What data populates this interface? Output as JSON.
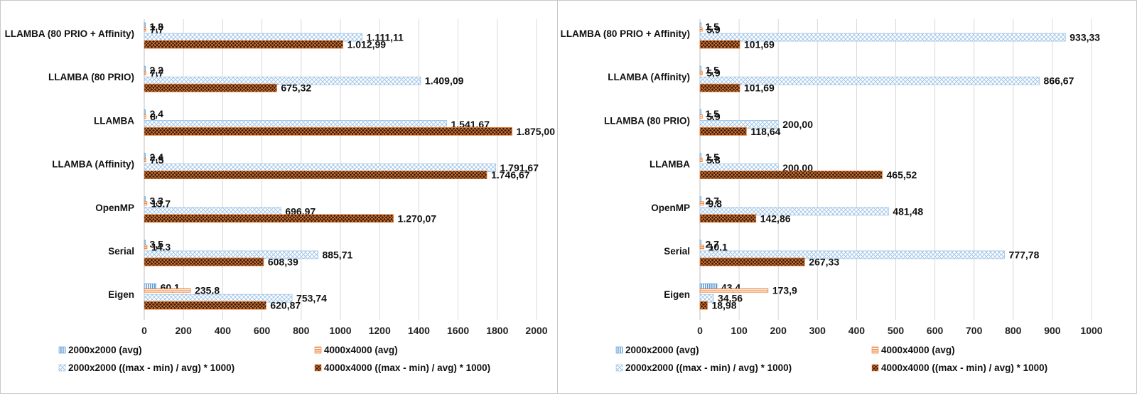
{
  "chart_data": [
    {
      "type": "bar",
      "orientation": "horizontal",
      "categories": [
        "LLAMBA (80 PRIO + Affinity)",
        "LLAMBA (80 PRIO)",
        "LLAMBA",
        "LLAMBA (Affinity)",
        "OpenMP",
        "Serial",
        "Eigen"
      ],
      "series": [
        {
          "name": "2000x2000 (avg)",
          "values": [
            1.8,
            2.2,
            2.4,
            2.4,
            3.3,
            3.5,
            60.1
          ],
          "labels": [
            "1,8",
            "2,2",
            "2,4",
            "2,4",
            "3,3",
            "3,5",
            "60,1"
          ],
          "color": "#5b9bd5",
          "pattern": "vlines"
        },
        {
          "name": "4000x4000 (avg)",
          "values": [
            7.7,
            7.7,
            8,
            7.5,
            13.7,
            14.3,
            235.8
          ],
          "labels": [
            "7,7",
            "7,7",
            "8",
            "7,5",
            "13,7",
            "14,3",
            "235,8"
          ],
          "color": "#ed7d31",
          "pattern": "hlines"
        },
        {
          "name": "2000x2000 ((max - min) / avg) * 1000)",
          "values": [
            1111.11,
            1409.09,
            1541.67,
            1791.67,
            696.97,
            885.71,
            753.74
          ],
          "labels": [
            "1.111,11",
            "1.409,09",
            "1.541,67",
            "1.791,67",
            "696,97",
            "885,71",
            "753,74"
          ],
          "color": "#9dc3e6",
          "pattern": "diamond"
        },
        {
          "name": "4000x4000 ((max - min) / avg) * 1000)",
          "values": [
            1012.99,
            675.32,
            1875.0,
            1746.67,
            1270.07,
            608.39,
            620.87
          ],
          "labels": [
            "1.012,99",
            "675,32",
            "1.875,00",
            "1.746,67",
            "1.270,07",
            "608,39",
            "620,87"
          ],
          "color": "#ed7d31",
          "pattern": "crosshatch"
        }
      ],
      "xlim": [
        0,
        2000
      ],
      "xticks": [
        0,
        200,
        400,
        600,
        800,
        1000,
        1200,
        1400,
        1600,
        1800,
        2000
      ],
      "grid": true,
      "legend": "bottom"
    },
    {
      "type": "bar",
      "orientation": "horizontal",
      "categories": [
        "LLAMBA (80 PRIO + Affinity)",
        "LLAMBA (Affinity)",
        "LLAMBA (80 PRIO)",
        "LLAMBA",
        "OpenMP",
        "Serial",
        "Eigen"
      ],
      "series": [
        {
          "name": "2000x2000 (avg)",
          "values": [
            1.5,
            1.5,
            1.5,
            1.5,
            2.7,
            2.7,
            43.4
          ],
          "labels": [
            "1,5",
            "1,5",
            "1,5",
            "1,5",
            "2,7",
            "2,7",
            "43,4"
          ],
          "color": "#5b9bd5",
          "pattern": "vlines"
        },
        {
          "name": "4000x4000 (avg)",
          "values": [
            5.9,
            5.9,
            5.9,
            5.8,
            9.8,
            10.1,
            173.9
          ],
          "labels": [
            "5,9",
            "5,9",
            "5,9",
            "5,8",
            "9,8",
            "10,1",
            "173,9"
          ],
          "color": "#ed7d31",
          "pattern": "hlines"
        },
        {
          "name": "2000x2000 ((max - min) / avg) * 1000)",
          "values": [
            933.33,
            866.67,
            200.0,
            200.0,
            481.48,
            777.78,
            34.56
          ],
          "labels": [
            "933,33",
            "866,67",
            "200,00",
            "200,00",
            "481,48",
            "777,78",
            "34,56"
          ],
          "color": "#9dc3e6",
          "pattern": "diamond"
        },
        {
          "name": "4000x4000 ((max - min) / avg) * 1000)",
          "values": [
            101.69,
            101.69,
            118.64,
            465.52,
            142.86,
            267.33,
            18.98
          ],
          "labels": [
            "101,69",
            "101,69",
            "118,64",
            "465,52",
            "142,86",
            "267,33",
            "18,98"
          ],
          "color": "#ed7d31",
          "pattern": "crosshatch"
        }
      ],
      "xlim": [
        0,
        1000
      ],
      "xticks": [
        0,
        100,
        200,
        300,
        400,
        500,
        600,
        700,
        800,
        900,
        1000
      ],
      "grid": true,
      "legend": "bottom"
    }
  ]
}
